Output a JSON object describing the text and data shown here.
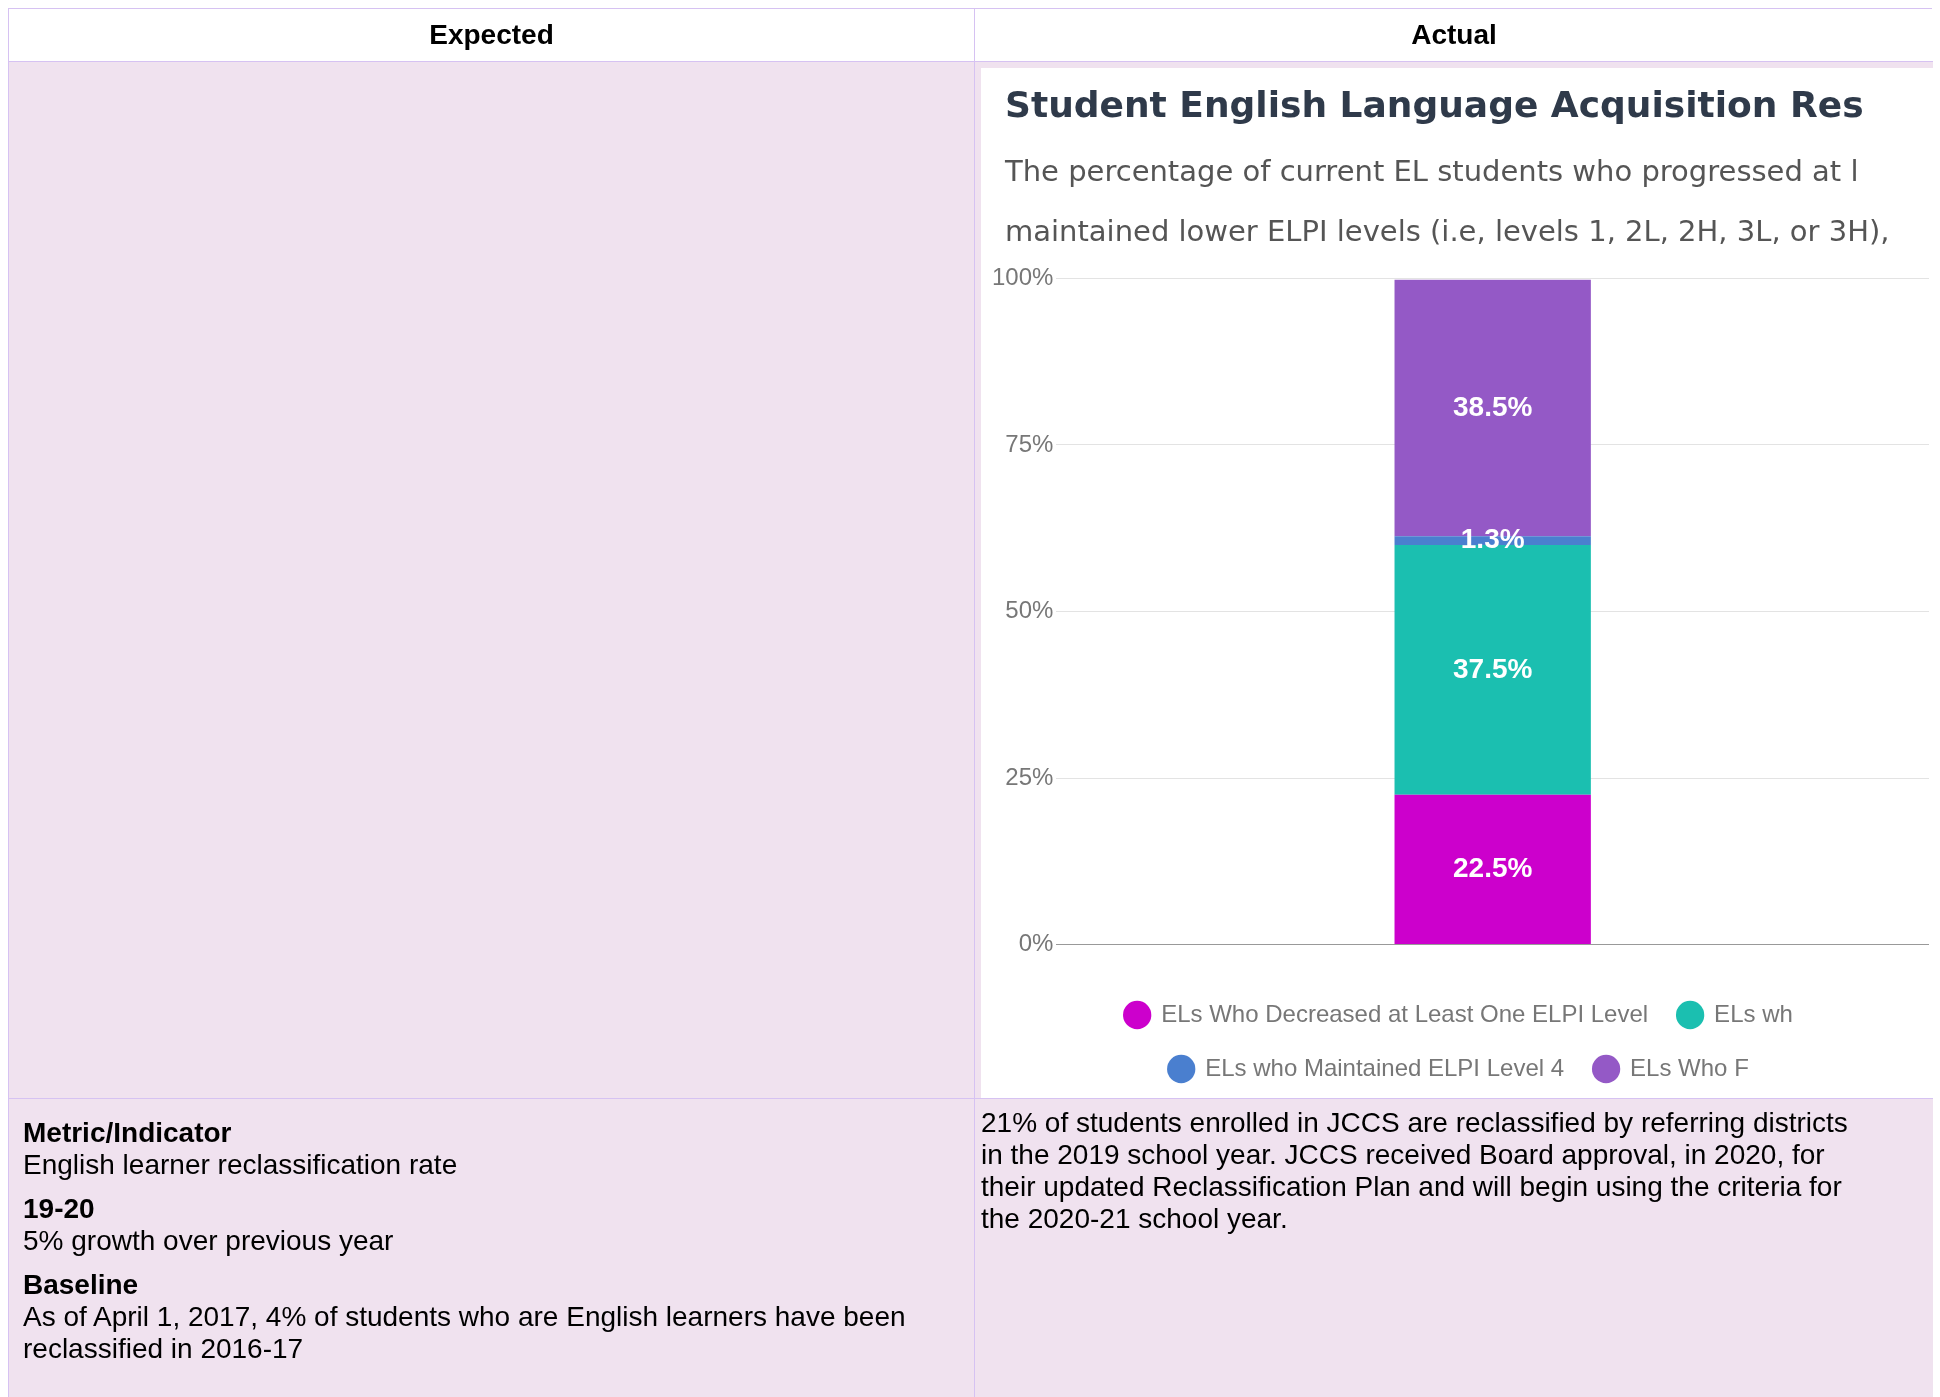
{
  "chart_data": {
    "type": "bar",
    "title": "Student English Language Acquisition Res",
    "subtitle": "The percentage of current EL students who progressed at l\nmaintained lower ELPI levels (i.e, levels 1, 2L, 2H, 3L, or 3H),",
    "categories": [
      null
    ],
    "stacked": true,
    "grid": "y",
    "legend": "bottom",
    "ylim": [
      0,
      100
    ],
    "yticks": [
      {
        "value": 0,
        "label": "0%"
      },
      {
        "value": 25,
        "label": "25%"
      },
      {
        "value": 50,
        "label": "50%"
      },
      {
        "value": 75,
        "label": "75%"
      },
      {
        "value": 100,
        "label": "100%"
      }
    ],
    "series": [
      {
        "name": "ELs Who Decreased at Least One ELPI Level",
        "color": "#cc00cc",
        "values": [
          22.5
        ],
        "value_labels": [
          "22.5%"
        ]
      },
      {
        "name": "ELs wh",
        "color": "#1bbfb0",
        "values": [
          37.5
        ],
        "value_labels": [
          "37.5%"
        ]
      },
      {
        "name": "ELs who Maintained ELPI Level 4",
        "color": "#4a7fcf",
        "values": [
          1.3
        ],
        "value_labels": [
          "1.3%"
        ]
      },
      {
        "name": "ELs Who F",
        "color": "#9459c6",
        "values": [
          38.5
        ],
        "value_labels": [
          "38.5%"
        ]
      }
    ],
    "annotations": [
      "Expected",
      "Actual",
      "Metric/Indicator",
      "English learner reclassification rate",
      "19-20",
      "5% growth over previous year",
      "Baseline",
      "As of April 1, 2017, 4% of students who are English learners have been reclassified in 2016-17",
      "21% of students enrolled in JCCS are reclassified by referring districts in the 2019 school year. JCCS received Board approval, in 2020, for their updated Reclassification Plan and will begin using the criteria for the 2020-21 school year."
    ]
  }
}
